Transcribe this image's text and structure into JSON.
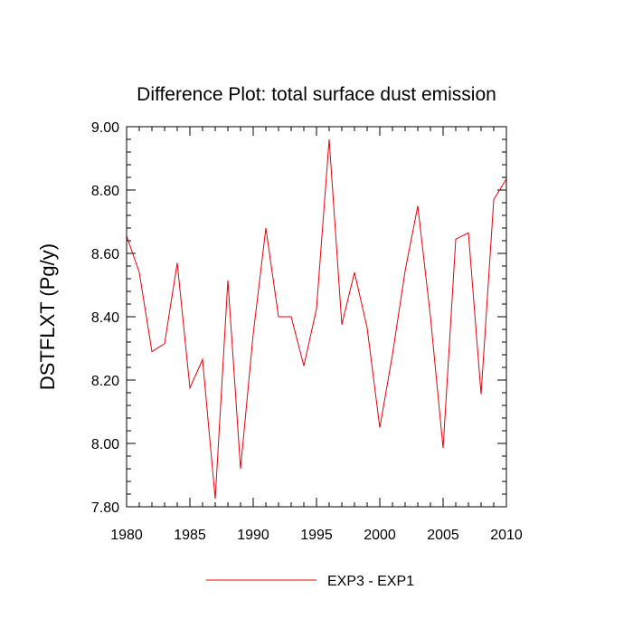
{
  "chart_data": {
    "type": "line",
    "title": "Difference Plot: total surface dust emission",
    "xlabel": "",
    "ylabel": "DSTFLXT  (Pg/y)",
    "xlim": [
      1980,
      2010
    ],
    "ylim": [
      7.8,
      9.0
    ],
    "x_ticks": [
      1980,
      1985,
      1990,
      1995,
      2000,
      2005,
      2010
    ],
    "x_tick_labels": [
      "1980",
      "1985",
      "1990",
      "1995",
      "2000",
      "2005",
      "2010"
    ],
    "y_ticks": [
      7.8,
      8.0,
      8.2,
      8.4,
      8.6,
      8.8,
      9.0
    ],
    "y_tick_labels": [
      "7.80",
      "8.00",
      "8.20",
      "8.40",
      "8.60",
      "8.80",
      "9.00"
    ],
    "x_minor_step": 1,
    "y_minor_step": 0.04,
    "grid": false,
    "legend_position": "bottom-center",
    "series": [
      {
        "name": "EXP3 - EXP1",
        "color": "#e8000b",
        "x": [
          1980,
          1981,
          1982,
          1983,
          1984,
          1985,
          1986,
          1987,
          1988,
          1989,
          1990,
          1991,
          1992,
          1993,
          1994,
          1995,
          1996,
          1997,
          1998,
          1999,
          2000,
          2001,
          2002,
          2003,
          2004,
          2005,
          2006,
          2007,
          2008,
          2009,
          2010
        ],
        "values": [
          8.655,
          8.54,
          8.29,
          8.315,
          8.57,
          8.175,
          8.265,
          7.825,
          8.515,
          7.92,
          8.345,
          8.68,
          8.4,
          8.4,
          8.245,
          8.425,
          8.96,
          8.375,
          8.54,
          8.365,
          8.05,
          8.28,
          8.545,
          8.75,
          8.4,
          7.985,
          8.645,
          8.665,
          8.155,
          8.77,
          8.835
        ]
      }
    ]
  }
}
